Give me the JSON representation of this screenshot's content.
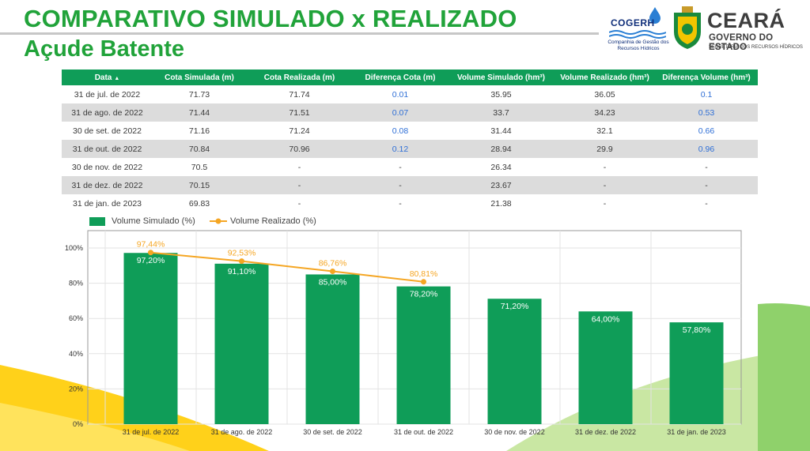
{
  "page": {
    "title": "COMPARATIVO SIMULADO x REALIZADO",
    "subtitle": "Açude Batente"
  },
  "logos": {
    "cogerh": {
      "name": "COGERH",
      "description": "Companhia de Gestão dos Recursos Hídricos"
    },
    "ceara": {
      "name": "CEARÁ",
      "government": "GOVERNO DO ESTADO",
      "secretariat": "SECRETARIA DOS RECURSOS HÍDRICOS"
    }
  },
  "colors": {
    "title_green": "#21a33a",
    "header_green": "#0f9d58",
    "bar_green": "#0f9d58",
    "line_orange": "#f5a623",
    "diff_blue": "#2f6fd6",
    "row_alt": "#dcdcdc"
  },
  "table": {
    "sort_indicator": "▲",
    "columns": [
      "Data",
      "Cota Simulada (m)",
      "Cota Realizada (m)",
      "Diferença Cota (m)",
      "Volume Simulado (hm³)",
      "Volume Realizado (hm³)",
      "Diferença Volume (hm³)"
    ],
    "rows": [
      [
        "31 de jul. de 2022",
        "71.73",
        "71.74",
        "0.01",
        "35.95",
        "36.05",
        "0.1"
      ],
      [
        "31 de ago. de 2022",
        "71.44",
        "71.51",
        "0.07",
        "33.7",
        "34.23",
        "0.53"
      ],
      [
        "30 de set. de 2022",
        "71.16",
        "71.24",
        "0.08",
        "31.44",
        "32.1",
        "0.66"
      ],
      [
        "31 de out. de 2022",
        "70.84",
        "70.96",
        "0.12",
        "28.94",
        "29.9",
        "0.96"
      ],
      [
        "30 de nov. de 2022",
        "70.5",
        "-",
        "-",
        "26.34",
        "-",
        "-"
      ],
      [
        "31 de dez. de 2022",
        "70.15",
        "-",
        "-",
        "23.67",
        "-",
        "-"
      ],
      [
        "31 de jan. de 2023",
        "69.83",
        "-",
        "-",
        "21.38",
        "-",
        "-"
      ]
    ]
  },
  "chart_data": {
    "type": "bar",
    "categories": [
      "31 de jul. de 2022",
      "31 de ago. de 2022",
      "30 de set. de 2022",
      "31 de out. de 2022",
      "30 de nov. de 2022",
      "31 de dez. de 2022",
      "31 de jan. de 2023"
    ],
    "series": [
      {
        "name": "Volume Simulado (%)",
        "type": "bar",
        "values": [
          97.2,
          91.1,
          85.0,
          78.2,
          71.2,
          64.0,
          57.8
        ],
        "labels": [
          "97,20%",
          "91,10%",
          "85,00%",
          "78,20%",
          "71,20%",
          "64,00%",
          "57,80%"
        ]
      },
      {
        "name": "Volume Realizado (%)",
        "type": "line",
        "values": [
          97.44,
          92.53,
          86.76,
          80.81,
          null,
          null,
          null
        ],
        "labels": [
          "97,44%",
          "92,53%",
          "86,76%",
          "80,81%",
          null,
          null,
          null
        ]
      }
    ],
    "y_ticks": [
      "0%",
      "20%",
      "40%",
      "60%",
      "80%",
      "100%"
    ],
    "ylim": [
      0,
      100
    ],
    "grid": true,
    "legend_position": "top-left"
  }
}
